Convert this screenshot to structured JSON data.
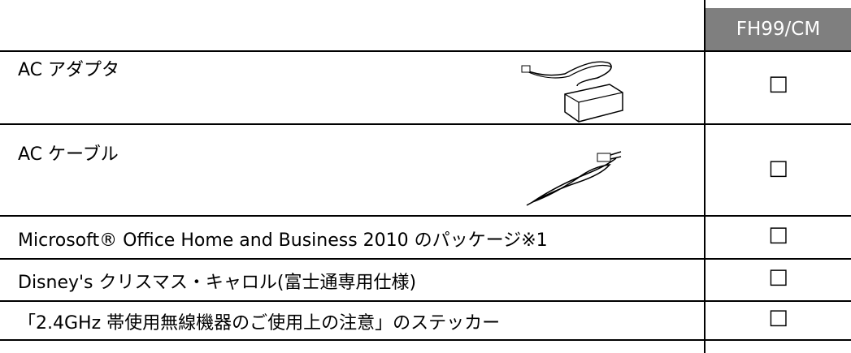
{
  "header": {
    "column": "FH99/CM"
  },
  "table": {
    "rows": [
      {
        "label": "AC アダプタ",
        "check": "□"
      },
      {
        "label": "AC ケーブル",
        "check": "□"
      },
      {
        "label": "Microsoft® Office Home and Business 2010 のパッケージ※1",
        "check": "□"
      },
      {
        "label": "Disney's クリスマス・キャロル(富士通専用仕様)",
        "check": "□"
      },
      {
        "label": "「2.4GHz 帯使用無線機器のご使用上の注意」のステッカー",
        "check": "□"
      }
    ]
  }
}
